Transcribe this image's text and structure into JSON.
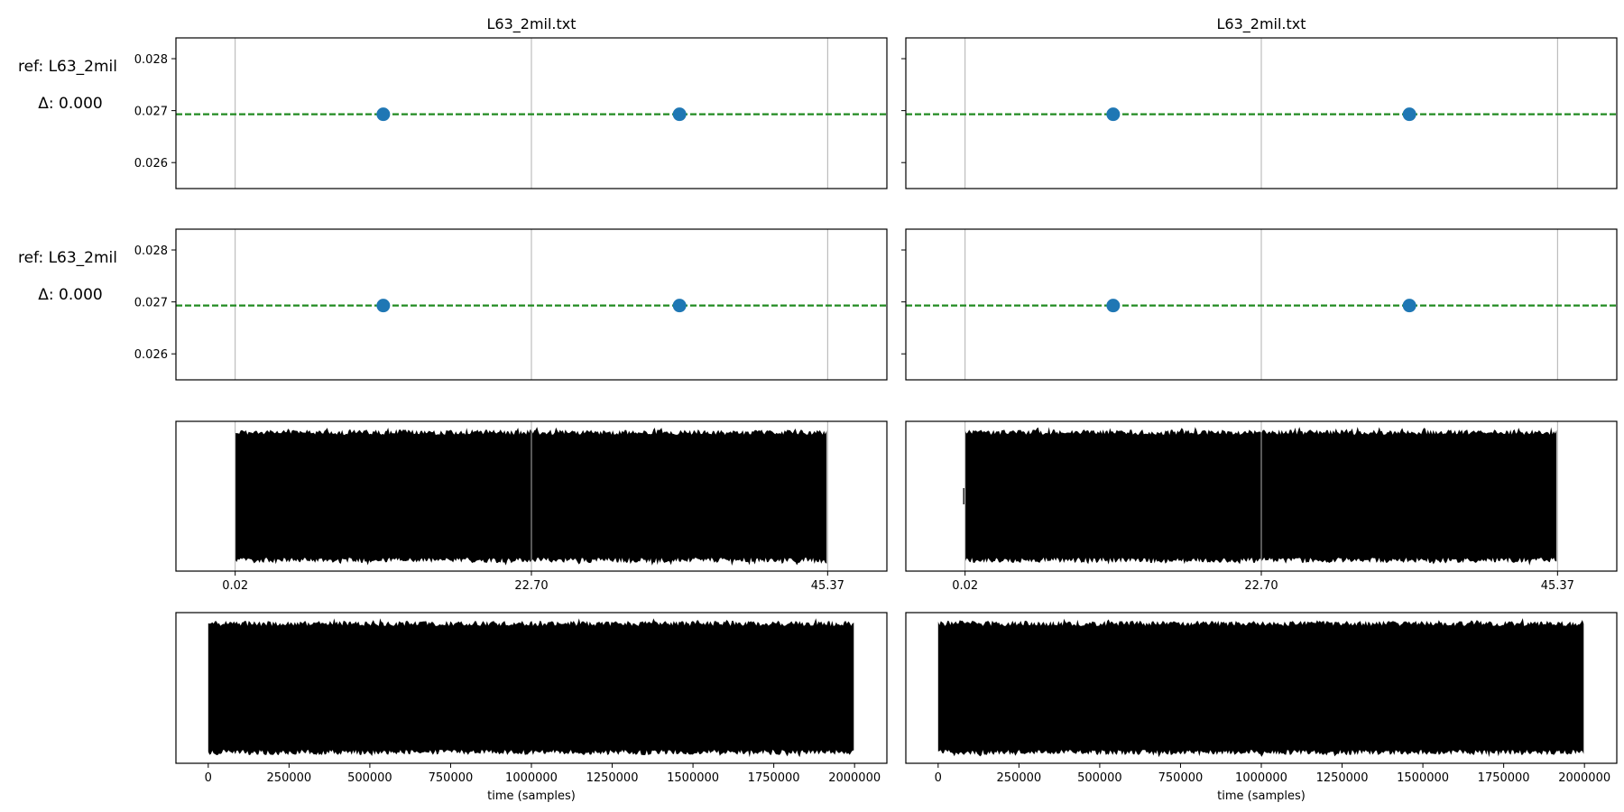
{
  "chart_data": {
    "type": "line",
    "columns": [
      {
        "title": "L63_2mil.txt"
      },
      {
        "title": "L63_2mil.txt"
      }
    ],
    "row_labels": [
      {
        "ref": "ref: L63_2mil",
        "delta": "Δ: 0.000"
      },
      {
        "ref": "ref: L63_2mil",
        "delta": "Δ: 0.000"
      }
    ],
    "period_panels": {
      "ylim": [
        0.0255,
        0.0284
      ],
      "yticks": [
        0.026,
        0.027,
        0.028
      ],
      "ytick_labels": [
        "0.026",
        "0.027",
        "0.028"
      ],
      "xlim": [
        -0.1,
        1.1
      ],
      "vlines": [
        0.0,
        0.5,
        1.0
      ],
      "reference_line": {
        "value": 0.02693,
        "color": "#228b22",
        "style": "dashed"
      },
      "points": [
        {
          "x": 0.25,
          "y": 0.02693
        },
        {
          "x": 0.75,
          "y": 0.02693
        }
      ],
      "point_color": "#1f77b4"
    },
    "signal_panels": {
      "xtick_labels": [
        "0.02",
        "22.70",
        "45.37"
      ],
      "vlines": [
        0.0,
        0.5,
        1.0
      ],
      "color": "#000000"
    },
    "sample_panels": {
      "xlim": [
        -100000,
        2100000
      ],
      "xticks": [
        0,
        250000,
        500000,
        750000,
        1000000,
        1250000,
        1500000,
        1750000,
        2000000
      ],
      "xtick_labels": [
        "0",
        "250000",
        "500000",
        "750000",
        "1000000",
        "1250000",
        "1500000",
        "1750000",
        "2000000"
      ],
      "xlabel": "time (samples)",
      "signal_range": [
        0,
        2000000
      ],
      "color": "#000000"
    }
  }
}
